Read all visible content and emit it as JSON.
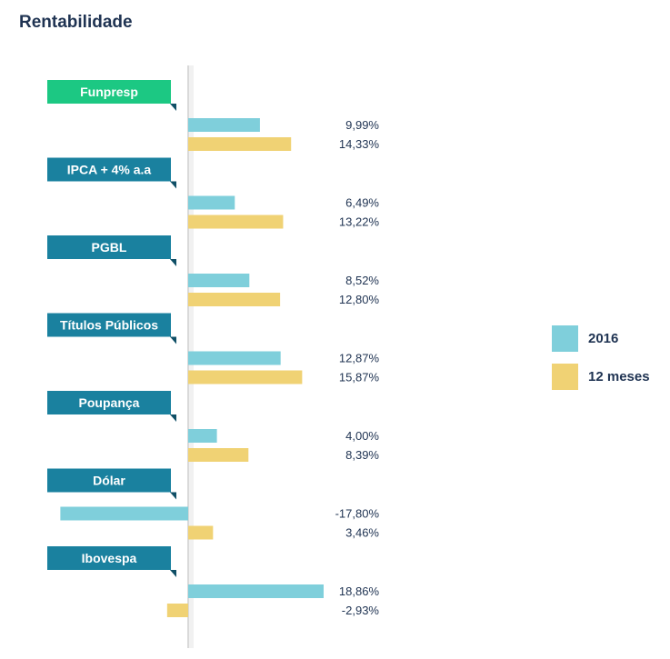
{
  "title": "Rentabilidade",
  "colors": {
    "bar_2016": "#7fcfdb",
    "bar_12m": "#f0d274",
    "ribbon_highlight": "#1cc883",
    "ribbon": "#1a819f",
    "ribbon_fold": "#0f4f66",
    "text": "#1f3352"
  },
  "chart_data": {
    "type": "bar",
    "orientation": "horizontal",
    "title": "Rentabilidade",
    "xlabel": "",
    "ylabel": "",
    "grid": false,
    "legend_position": "right",
    "highlighted_category": "Funpresp",
    "categories": [
      "Funpresp",
      "IPCA + 4% a.a",
      "PGBL",
      "Títulos Públicos",
      "Poupança",
      "Dólar",
      "Ibovespa"
    ],
    "series": [
      {
        "name": "2016",
        "values": [
          9.99,
          6.49,
          8.52,
          12.87,
          4.0,
          -17.8,
          18.86
        ],
        "labels": [
          "9,99%",
          "6,49%",
          "8,52%",
          "12,87%",
          "4,00%",
          "-17,80%",
          "18,86%"
        ]
      },
      {
        "name": "12 meses",
        "values": [
          14.33,
          13.22,
          12.8,
          15.87,
          8.39,
          3.46,
          -2.93
        ],
        "labels": [
          "14,33%",
          "13,22%",
          "12,80%",
          "15,87%",
          "8,39%",
          "3,46%",
          "-2,93%"
        ]
      }
    ]
  }
}
